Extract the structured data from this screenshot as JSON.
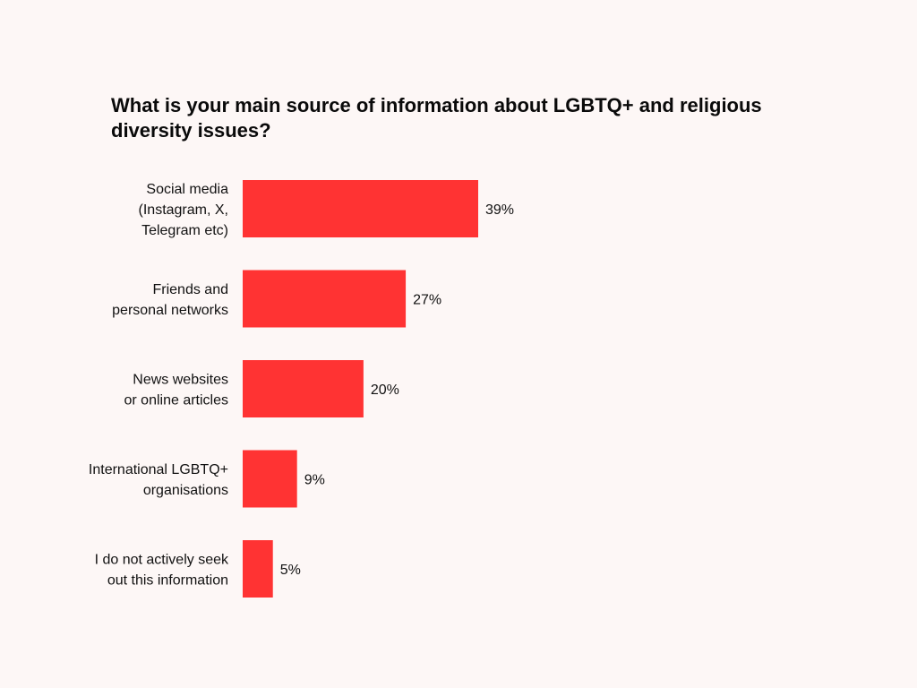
{
  "chart_data": {
    "type": "bar",
    "orientation": "horizontal",
    "title": "What is your main source of information about LGBTQ+ and religious diversity issues?",
    "categories": [
      [
        "Social media",
        "(Instagram, X,",
        "Telegram etc)"
      ],
      [
        "Friends and",
        "personal networks"
      ],
      [
        "News websites",
        "or online articles"
      ],
      [
        "International LGBTQ+",
        "organisations"
      ],
      [
        "I do not actively seek",
        "out this information"
      ]
    ],
    "values": [
      39,
      27,
      20,
      9,
      5
    ],
    "value_labels": [
      "39%",
      "27%",
      "20%",
      "9%",
      "5%"
    ],
    "unit": "%",
    "xlim": [
      0,
      39
    ],
    "grid": false,
    "bar_color": "#ff3333"
  }
}
